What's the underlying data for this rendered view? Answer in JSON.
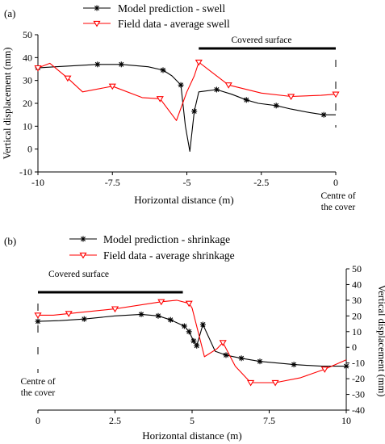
{
  "chart_data": [
    {
      "type": "line",
      "panel_label": "(a)",
      "xlabel": "Horizontal distance (m)",
      "ylabel": "Vertical displacement (mm)",
      "xlim": [
        -10,
        0
      ],
      "ylim": [
        -10,
        50
      ],
      "xticks": [
        -10,
        -7.5,
        -5,
        -2.5,
        0
      ],
      "xtick_labels": [
        "-10",
        "-7.5",
        "-5",
        "-2.5",
        "0"
      ],
      "yticks": [
        -10,
        0,
        10,
        20,
        30,
        40,
        50
      ],
      "ytick_labels": [
        "-10",
        "0",
        "10",
        "20",
        "30",
        "40",
        "50"
      ],
      "y_axis_side": "left",
      "grid": false,
      "legend_position": "top-center",
      "annotations": {
        "covered_surface": "Covered surface",
        "covered_range": [
          -4.6,
          0
        ],
        "centre_line1": "Centre of",
        "centre_line2": "the cover"
      },
      "series": [
        {
          "name": "Model prediction - swell",
          "color": "#000000",
          "marker": "asterisk",
          "x": [
            -10,
            -9.4,
            -8.0,
            -7.2,
            -6.3,
            -5.8,
            -5.5,
            -5.2,
            -5.05,
            -4.9,
            -4.75,
            -4.6,
            -4.0,
            -3.5,
            -3.0,
            -2.6,
            -2.0,
            -1.5,
            -0.9,
            -0.4,
            0
          ],
          "y": [
            35.5,
            36,
            37,
            37,
            36,
            34.5,
            32,
            28,
            10,
            -1,
            16.5,
            25,
            26,
            24,
            21.5,
            20,
            19,
            17.5,
            16,
            15,
            15
          ],
          "marker_indices": [
            0,
            2,
            3,
            5,
            7,
            10,
            12,
            14,
            16,
            19
          ]
        },
        {
          "name": "Field data - average swell",
          "color": "#ff0000",
          "marker": "triangle-down",
          "x": [
            -10,
            -9.6,
            -9.0,
            -8.5,
            -7.5,
            -6.5,
            -5.9,
            -5.35,
            -5.0,
            -4.75,
            -4.6,
            -4.1,
            -3.6,
            -2.5,
            -1.5,
            -0.5,
            0
          ],
          "y": [
            35.5,
            37.5,
            31,
            25,
            27.5,
            22.5,
            22,
            12.5,
            25,
            32,
            38,
            33,
            28,
            24.5,
            23,
            23.5,
            24
          ],
          "marker_indices": [
            0,
            2,
            4,
            6,
            10,
            12,
            14,
            16
          ]
        }
      ]
    },
    {
      "type": "line",
      "panel_label": "(b)",
      "xlabel": "Horizontal distance (m)",
      "ylabel": "Vertical displacement (mm)",
      "xlim": [
        0,
        10
      ],
      "ylim": [
        -40,
        50
      ],
      "xticks": [
        0,
        2.5,
        5,
        7.5,
        10
      ],
      "xtick_labels": [
        "0",
        "2.5",
        "5",
        "7.5",
        "10"
      ],
      "yticks": [
        -40,
        -30,
        -20,
        -10,
        0,
        10,
        20,
        30,
        40,
        50
      ],
      "ytick_labels": [
        "-40",
        "-30",
        "-20",
        "-10",
        "0",
        "10",
        "20",
        "30",
        "40",
        "50"
      ],
      "y_axis_side": "right",
      "grid": false,
      "legend_position": "top-center",
      "annotations": {
        "covered_surface": "Covered surface",
        "covered_range": [
          0,
          4.7
        ],
        "centre_line1": "Centre of",
        "centre_line2": "the cover"
      },
      "series": [
        {
          "name": "Model prediction - shrinkage",
          "color": "#000000",
          "marker": "asterisk",
          "x": [
            0,
            0.7,
            1.5,
            2.5,
            3.35,
            3.9,
            4.3,
            4.75,
            4.9,
            5.05,
            5.15,
            5.35,
            5.75,
            6.1,
            6.6,
            7.2,
            8.3,
            9.2,
            10
          ],
          "y": [
            16.5,
            17,
            18,
            20,
            21,
            20,
            17.5,
            13.5,
            10,
            4,
            1,
            14.5,
            -2.5,
            -5,
            -7,
            -9,
            -11,
            -12,
            -12
          ],
          "marker_indices": [
            0,
            2,
            4,
            5,
            6,
            7,
            8,
            9,
            10,
            11,
            13,
            14,
            15,
            16,
            18
          ]
        },
        {
          "name": "Field data - average shrinkage",
          "color": "#ff0000",
          "marker": "triangle-down",
          "x": [
            0,
            0.5,
            1.0,
            2.5,
            4.0,
            4.5,
            4.9,
            5.0,
            5.4,
            5.8,
            6.0,
            6.4,
            6.9,
            7.7,
            8.5,
            9.3,
            10
          ],
          "y": [
            20.5,
            20.5,
            21.5,
            24.5,
            29,
            30,
            28,
            25,
            -6,
            -1,
            3,
            -12,
            -22.5,
            -22.5,
            -19.5,
            -14,
            -8
          ],
          "marker_indices": [
            0,
            2,
            3,
            4,
            6,
            10,
            12,
            13,
            15
          ]
        }
      ]
    }
  ]
}
